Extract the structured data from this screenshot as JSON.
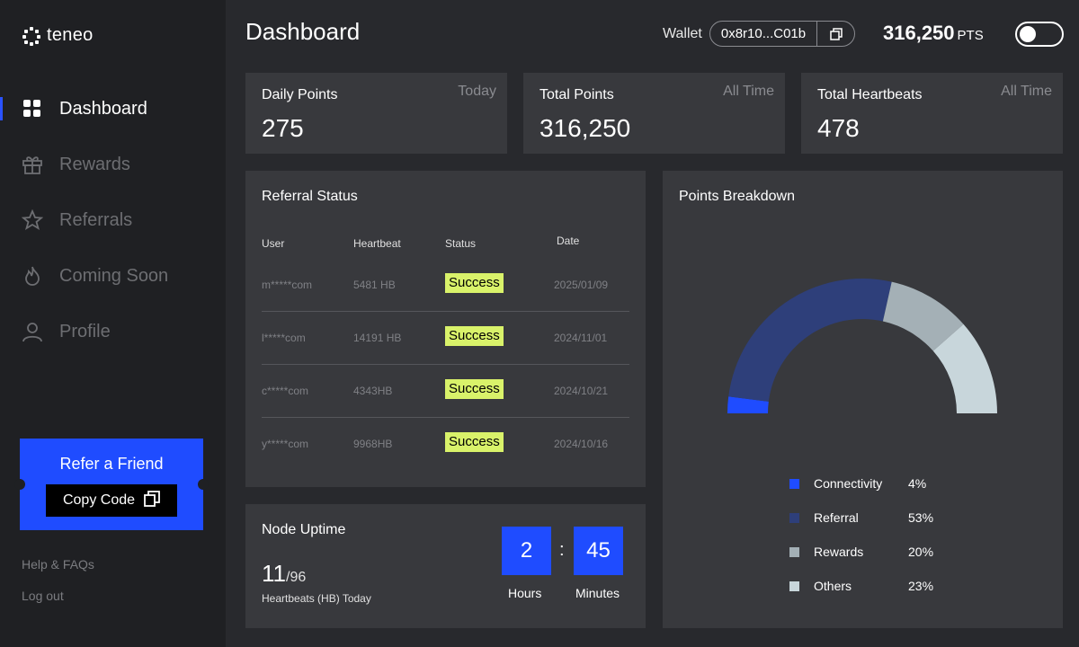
{
  "app": {
    "logo_text": "teneo"
  },
  "sidebar": {
    "items": [
      {
        "label": "Dashboard",
        "icon": "grid-icon",
        "active": true
      },
      {
        "label": "Rewards",
        "icon": "gift-icon",
        "active": false
      },
      {
        "label": "Referrals",
        "icon": "star-icon",
        "active": false
      },
      {
        "label": "Coming Soon",
        "icon": "flame-icon",
        "active": false
      },
      {
        "label": "Profile",
        "icon": "user-icon",
        "active": false
      }
    ],
    "refer": {
      "title": "Refer a Friend",
      "copy_label": "Copy Code"
    },
    "help_label": "Help & FAQs",
    "logout_label": "Log out"
  },
  "header": {
    "title": "Dashboard",
    "wallet_label": "Wallet",
    "wallet_address": "0x8r10...C01b",
    "points": "316,250",
    "points_unit": "PTS"
  },
  "stats": [
    {
      "label": "Daily Points",
      "tag": "Today",
      "value": "275"
    },
    {
      "label": "Total Points",
      "tag": "All Time",
      "value": "316,250"
    },
    {
      "label": "Total Heartbeats",
      "tag": "All Time",
      "value": "478"
    }
  ],
  "referral_status": {
    "title": "Referral Status",
    "columns": [
      "User",
      "Heartbeat",
      "Status",
      "Date"
    ],
    "rows": [
      {
        "user": "m*****com",
        "heartbeat": "5481 HB",
        "status": "Success",
        "date": "2025/01/09"
      },
      {
        "user": "l*****com",
        "heartbeat": "14191 HB",
        "status": "Success",
        "date": "2024/11/01"
      },
      {
        "user": "c*****com",
        "heartbeat": "4343HB",
        "status": "Success",
        "date": "2024/10/21"
      },
      {
        "user": "y*****com",
        "heartbeat": "9968HB",
        "status": "Success",
        "date": "2024/10/16"
      }
    ]
  },
  "node_uptime": {
    "title": "Node Uptime",
    "count": "11",
    "total": "/96",
    "subtitle": "Heartbeats (HB) Today",
    "hours": "2",
    "minutes": "45",
    "separator": ":",
    "hours_label": "Hours",
    "minutes_label": "Minutes"
  },
  "points_breakdown": {
    "title": "Points Breakdown",
    "items": [
      {
        "name": "Connectivity",
        "percent": "4%",
        "value": 4,
        "color": "#1f4cff"
      },
      {
        "name": "Referral",
        "percent": "53%",
        "value": 53,
        "color": "#2e3f7a"
      },
      {
        "name": "Rewards",
        "percent": "20%",
        "value": 20,
        "color": "#a4b0b6"
      },
      {
        "name": "Others",
        "percent": "23%",
        "value": 23,
        "color": "#c8d6db"
      }
    ]
  }
}
